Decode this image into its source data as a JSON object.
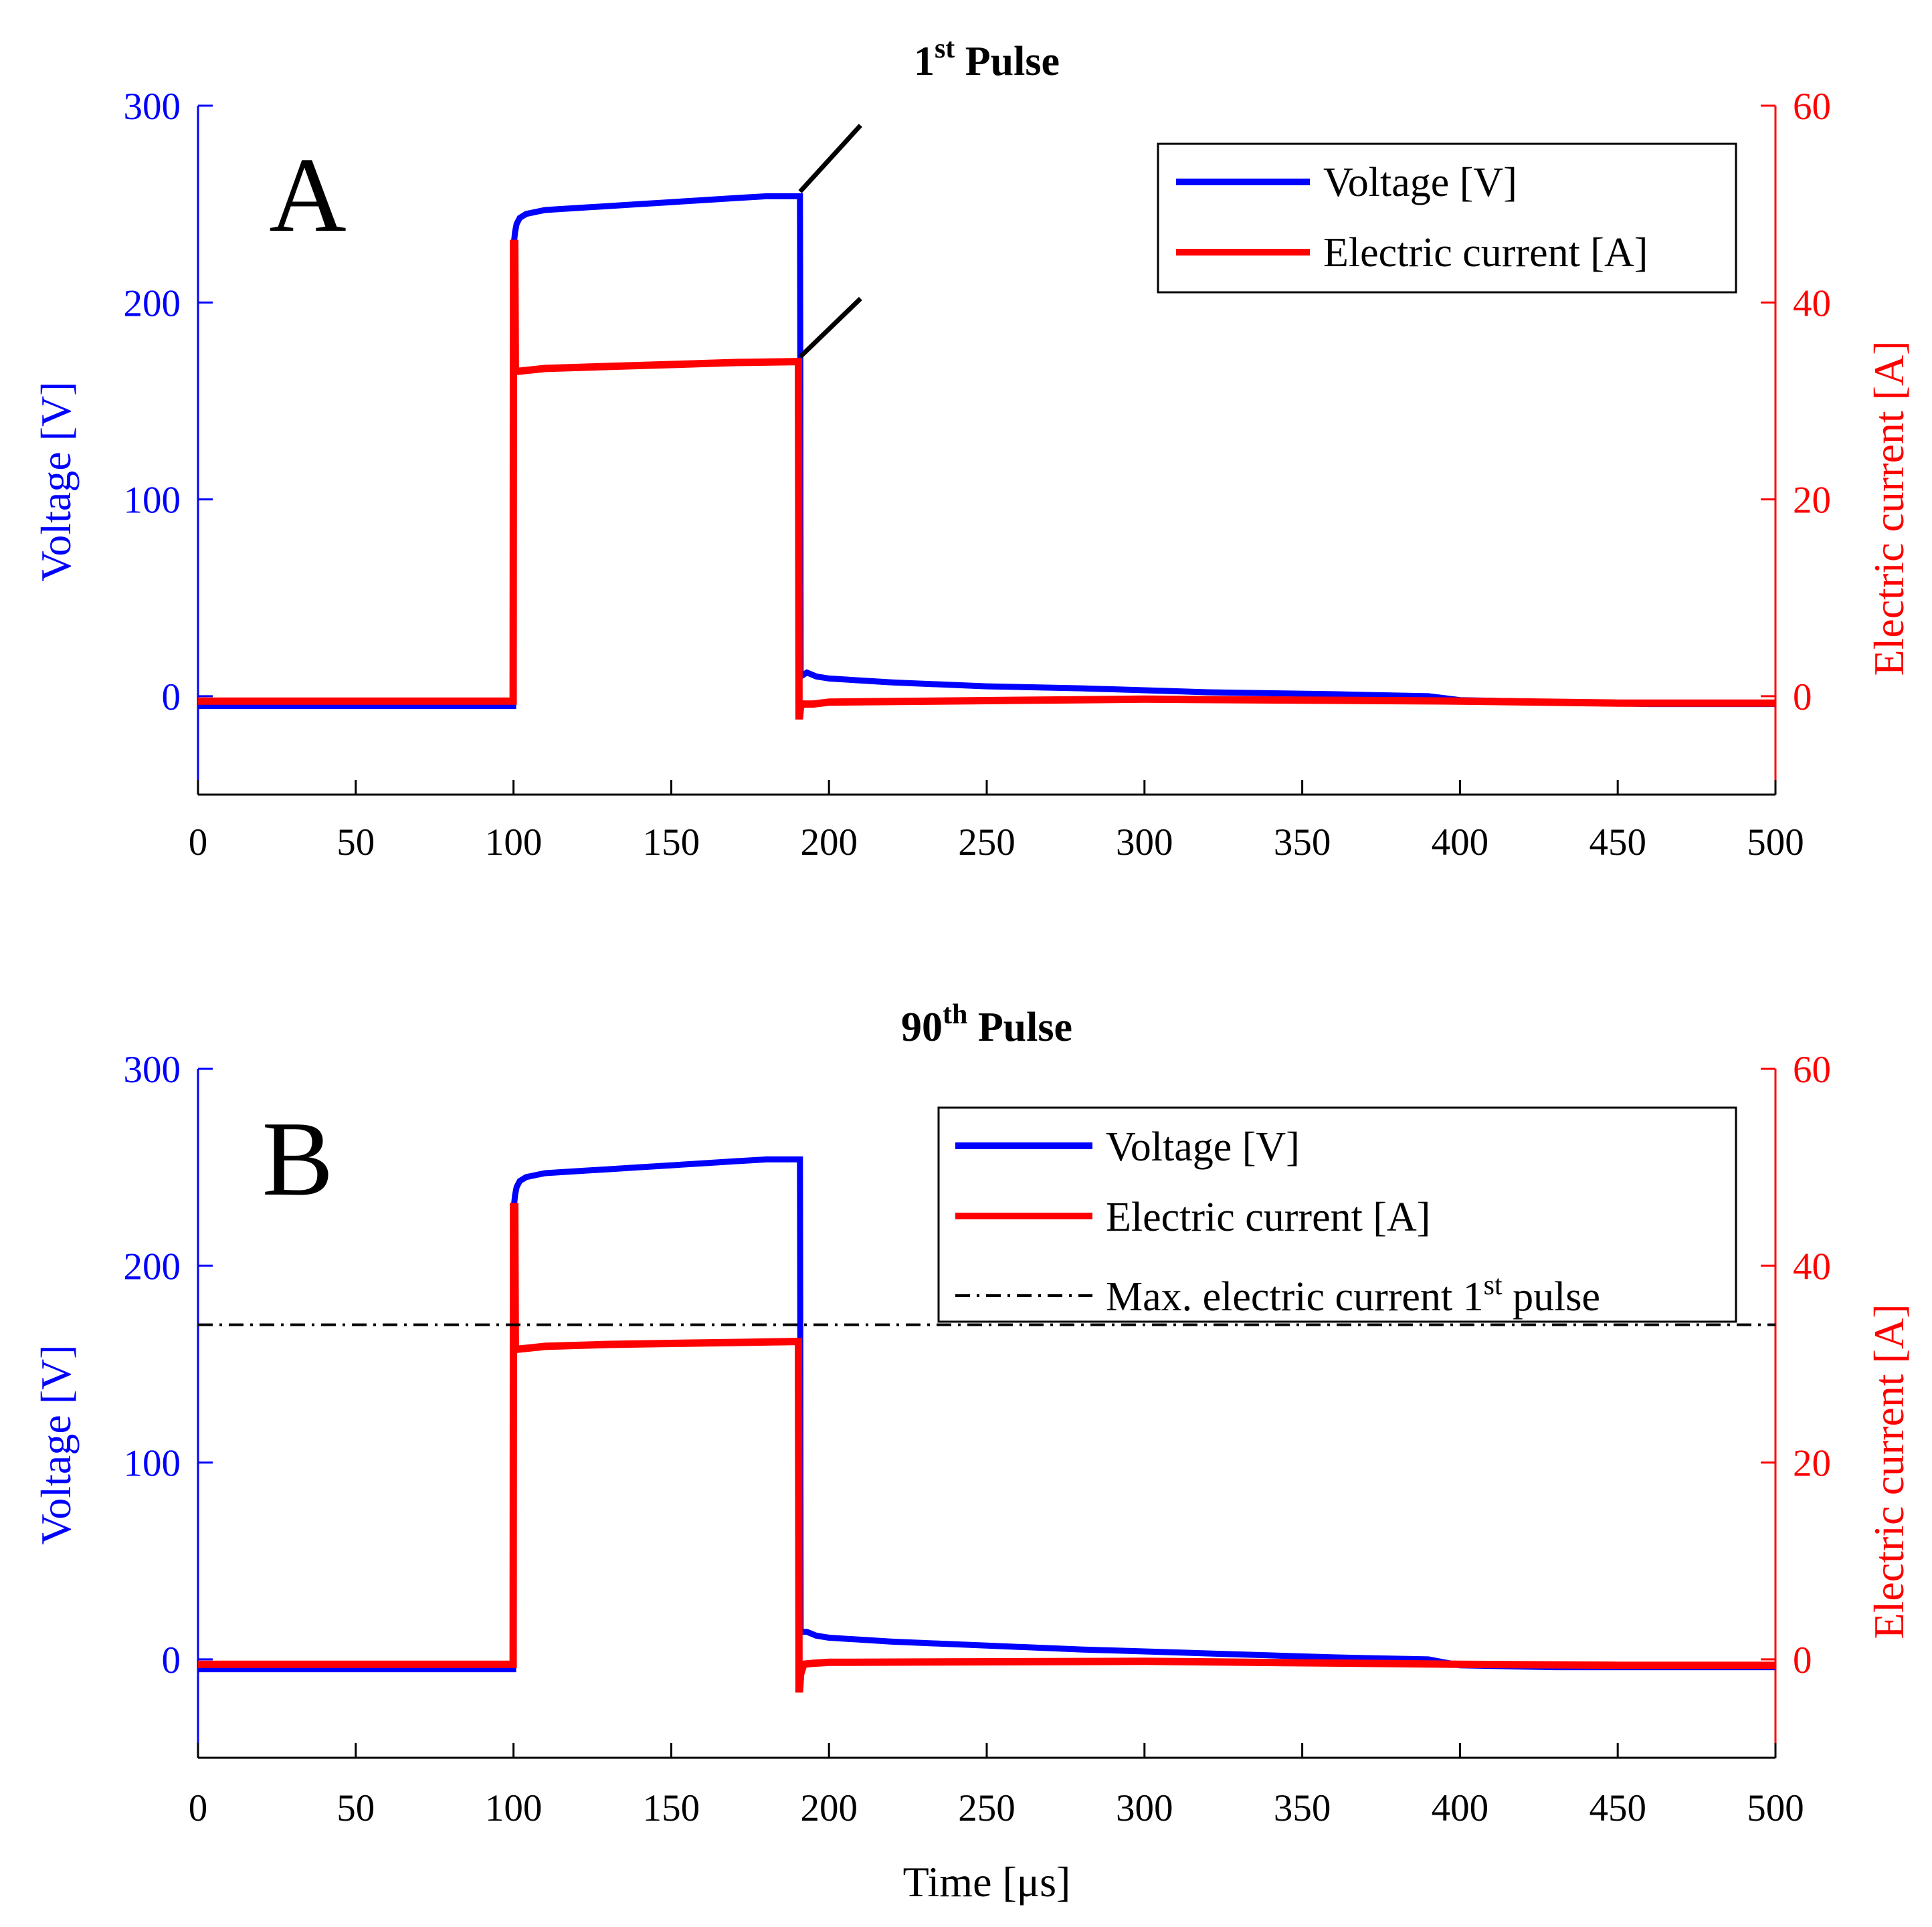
{
  "colors": {
    "voltage": "#0000ff",
    "current": "#ff0000",
    "axis": "#000000",
    "reference": "#000000"
  },
  "x_axis_label": "Time [μs]",
  "chart_data": [
    {
      "type": "line",
      "panel_letter": "A",
      "title": {
        "main": "1",
        "sup": "st",
        "rest": " Pulse"
      },
      "xlabel": "",
      "ylabel_left": "Voltage [V]",
      "ylabel_right": "Electric current [A]",
      "xlim": [
        0,
        500
      ],
      "ylim_left": [
        -50,
        300
      ],
      "ylim_right": [
        -10,
        60
      ],
      "xticks": [
        0,
        50,
        100,
        150,
        200,
        250,
        300,
        350,
        400,
        450,
        500
      ],
      "yticks_left": [
        0,
        100,
        200,
        300
      ],
      "yticks_right": [
        0,
        20,
        40,
        60
      ],
      "legend": [
        {
          "label": "Voltage [V]",
          "sup": "",
          "tail": "",
          "style": "voltage"
        },
        {
          "label": "Electric current [A]",
          "sup": "",
          "tail": "",
          "style": "current"
        }
      ],
      "series": [
        {
          "name": "Voltage [V]",
          "axis": "left",
          "style": "voltage",
          "x": [
            0,
            99.9,
            100.1,
            100.5,
            101,
            102,
            104,
            107,
            110,
            120,
            130,
            140,
            150,
            160,
            170,
            180,
            190.8,
            190.9,
            191,
            193,
            196,
            200,
            220,
            250,
            280,
            320,
            360,
            390,
            400,
            430,
            460,
            500
          ],
          "y": [
            -5,
            -5,
            230,
            236,
            240,
            243,
            245,
            246,
            247,
            248,
            249,
            250,
            251,
            252,
            253,
            254,
            254,
            170,
            10,
            12,
            10,
            9,
            7,
            5,
            4,
            2,
            1,
            0,
            -2,
            -3,
            -4,
            -4
          ]
        },
        {
          "name": "Electric current [A]",
          "axis": "right",
          "style": "current",
          "x": [
            0,
            99.9,
            100,
            100.4,
            100.6,
            101,
            110,
            130,
            150,
            170,
            190.3,
            190.5,
            190.7,
            191,
            192,
            195,
            200,
            300,
            400,
            450,
            460,
            500
          ],
          "y": [
            -0.5,
            -0.5,
            46,
            46,
            33,
            33,
            33.3,
            33.5,
            33.7,
            33.9,
            34,
            -2,
            -2,
            -1,
            -0.8,
            -0.8,
            -0.6,
            -0.3,
            -0.5,
            -0.7,
            -0.7,
            -0.7
          ]
        }
      ],
      "reference_line": null,
      "annotations": [
        {
          "type": "arrow",
          "from": [
            210,
            290
          ],
          "to": [
            190,
            255
          ],
          "axis": "left"
        },
        {
          "type": "arrow",
          "from": [
            210,
            202
          ],
          "to": [
            190,
            171
          ],
          "axis": "left"
        }
      ]
    },
    {
      "type": "line",
      "panel_letter": "B",
      "title": {
        "main": "90",
        "sup": "th",
        "rest": " Pulse"
      },
      "xlabel": "Time [μs]",
      "ylabel_left": "Voltage [V]",
      "ylabel_right": "Electric current [A]",
      "xlim": [
        0,
        500
      ],
      "ylim_left": [
        -50,
        300
      ],
      "ylim_right": [
        -10,
        60
      ],
      "xticks": [
        0,
        50,
        100,
        150,
        200,
        250,
        300,
        350,
        400,
        450,
        500
      ],
      "yticks_left": [
        0,
        100,
        200,
        300
      ],
      "yticks_right": [
        0,
        20,
        40,
        60
      ],
      "legend": [
        {
          "label": "Voltage [V]",
          "sup": "",
          "tail": "",
          "style": "voltage"
        },
        {
          "label": "Electric current [A]",
          "sup": "",
          "tail": "",
          "style": "current"
        },
        {
          "label": "Max. electric current 1",
          "sup": "st",
          "tail": " pulse",
          "style": "reference"
        }
      ],
      "series": [
        {
          "name": "Voltage [V]",
          "axis": "left",
          "style": "voltage",
          "x": [
            0,
            99.9,
            100.1,
            100.5,
            101,
            102,
            104,
            107,
            110,
            120,
            130,
            140,
            150,
            160,
            170,
            180,
            190.8,
            190.9,
            191,
            193,
            196,
            200,
            220,
            250,
            280,
            320,
            360,
            390,
            400,
            430,
            460,
            500
          ],
          "y": [
            -5,
            -5,
            230,
            236,
            240,
            243,
            245,
            246,
            247,
            248,
            249,
            250,
            251,
            252,
            253,
            254,
            254,
            160,
            14,
            14,
            12,
            11,
            9,
            7,
            5,
            3,
            1,
            0,
            -3,
            -4,
            -4,
            -4
          ]
        },
        {
          "name": "Electric current [A]",
          "axis": "right",
          "style": "current",
          "x": [
            0,
            99.9,
            100,
            100.4,
            100.6,
            101,
            110,
            130,
            150,
            170,
            190.3,
            190.5,
            190.7,
            191,
            192,
            195,
            200,
            300,
            400,
            450,
            460,
            500
          ],
          "y": [
            -0.5,
            -0.5,
            46,
            46,
            31.5,
            31.5,
            31.8,
            32,
            32.1,
            32.2,
            32.3,
            -3,
            -3,
            -1.5,
            -0.5,
            -0.4,
            -0.3,
            -0.2,
            -0.5,
            -0.6,
            -0.6,
            -0.6
          ]
        }
      ],
      "reference_line": {
        "axis": "right",
        "value": 34,
        "style": "dashdot"
      },
      "annotations": []
    }
  ]
}
